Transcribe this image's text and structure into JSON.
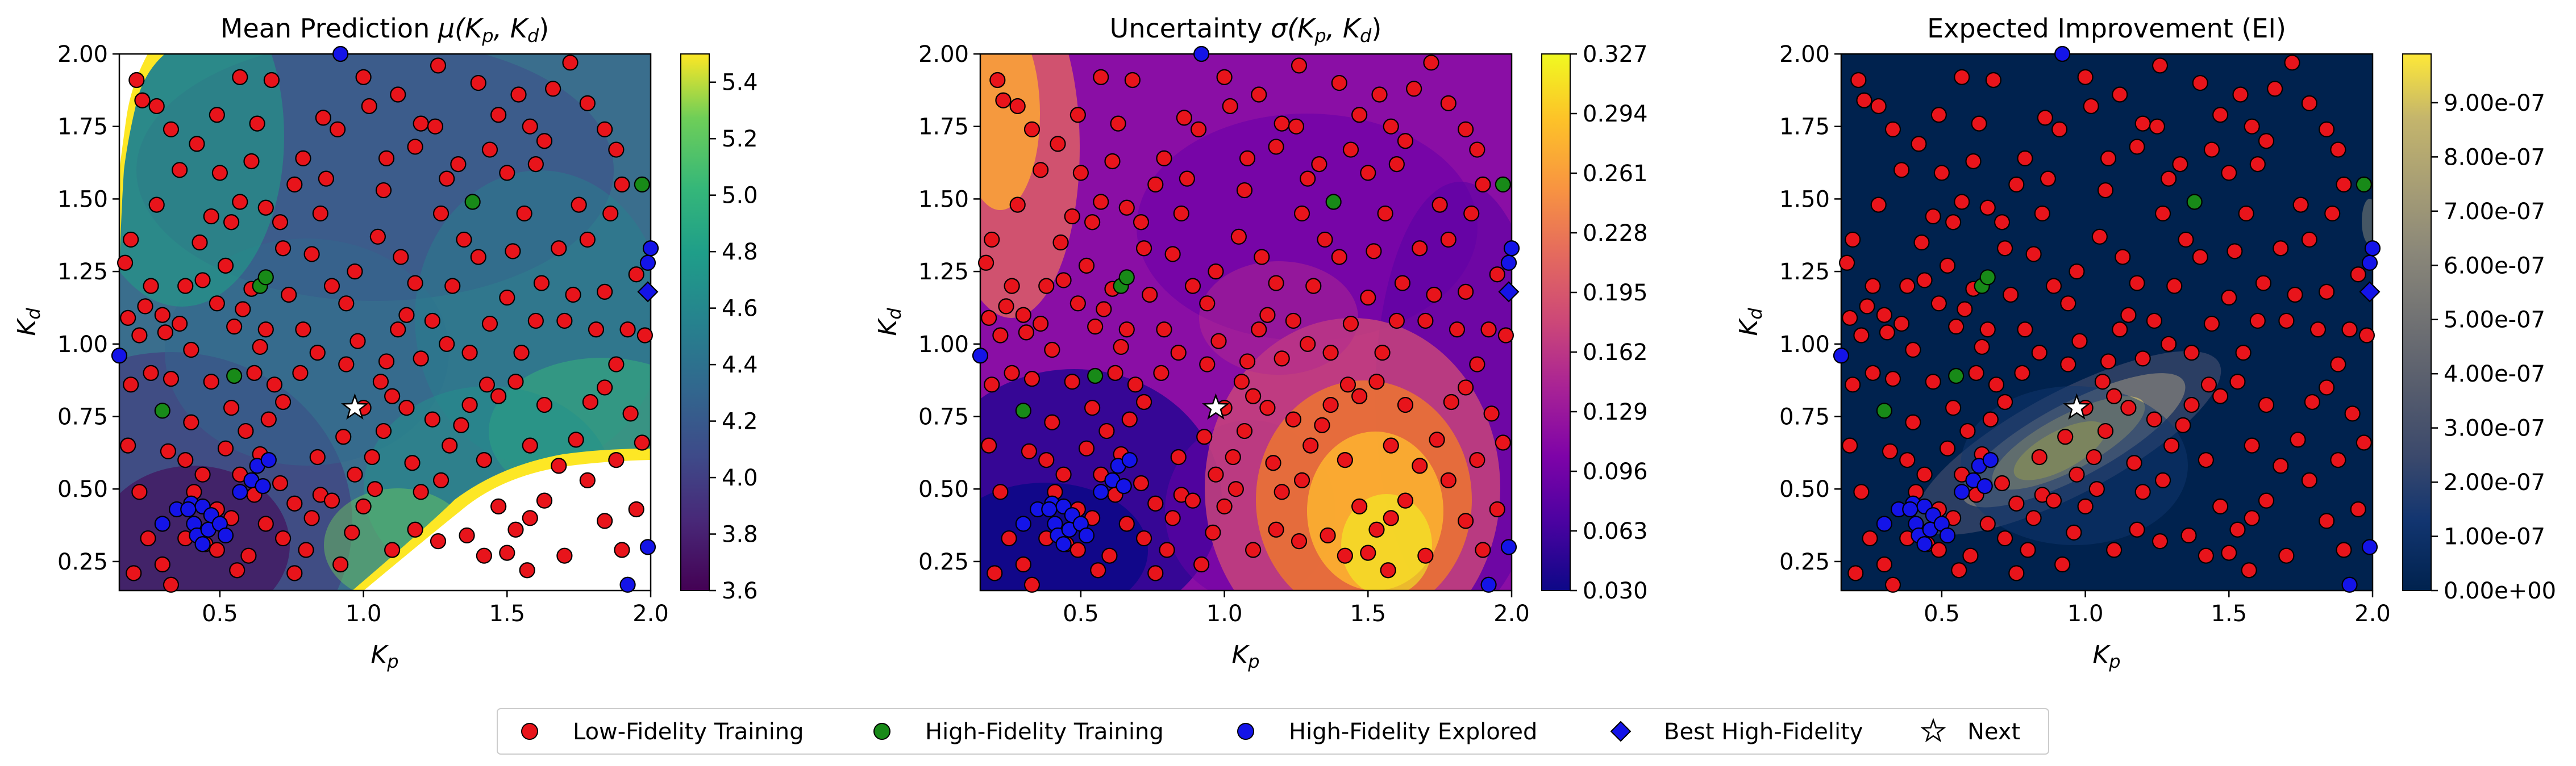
{
  "chart_data": [
    {
      "type": "heatmap",
      "title": "Mean Prediction μ(K_p, K_d)",
      "title_main": "Mean Prediction ",
      "title_math": "μ(K",
      "xlabel": "K_p",
      "ylabel": "K_d",
      "xlim": [
        0.15,
        2.0
      ],
      "ylim": [
        0.15,
        2.0
      ],
      "xticks": [
        "0.5",
        "1.0",
        "1.5",
        "2.0"
      ],
      "yticks": [
        "0.25",
        "0.50",
        "0.75",
        "1.00",
        "1.25",
        "1.50",
        "1.75",
        "2.00"
      ],
      "colormap": "viridis",
      "colorbar_range": [
        3.6,
        5.5
      ],
      "colorbar_ticks": [
        "3.6",
        "3.8",
        "4.0",
        "4.2",
        "4.4",
        "4.6",
        "4.8",
        "5.0",
        "5.2",
        "5.4"
      ],
      "masked_above": 5.5
    },
    {
      "type": "heatmap",
      "title": "Uncertainty σ(K_p, K_d)",
      "title_main": "Uncertainty ",
      "title_math": "σ(K",
      "xlabel": "K_p",
      "ylabel": "K_d",
      "xlim": [
        0.15,
        2.0
      ],
      "ylim": [
        0.15,
        2.0
      ],
      "xticks": [
        "0.5",
        "1.0",
        "1.5",
        "2.0"
      ],
      "yticks": [
        "0.25",
        "0.50",
        "0.75",
        "1.00",
        "1.25",
        "1.50",
        "1.75",
        "2.00"
      ],
      "colormap": "plasma",
      "colorbar_range": [
        0.03,
        0.327
      ],
      "colorbar_ticks": [
        "0.030",
        "0.063",
        "0.096",
        "0.129",
        "0.162",
        "0.195",
        "0.228",
        "0.261",
        "0.294",
        "0.327"
      ]
    },
    {
      "type": "heatmap",
      "title": "Expected Improvement (EI)",
      "title_main": "Expected Improvement (EI)",
      "title_math": "",
      "xlabel": "K_p",
      "ylabel": "K_d",
      "xlim": [
        0.15,
        2.0
      ],
      "ylim": [
        0.15,
        2.0
      ],
      "xticks": [
        "0.5",
        "1.0",
        "1.5",
        "2.0"
      ],
      "yticks": [
        "0.25",
        "0.50",
        "0.75",
        "1.00",
        "1.25",
        "1.50",
        "1.75",
        "2.00"
      ],
      "colormap": "cividis",
      "colorbar_range": [
        0,
        9.9e-07
      ],
      "colorbar_ticks": [
        "0.00e+00",
        "1.00e-07",
        "2.00e-07",
        "3.00e-07",
        "4.00e-07",
        "5.00e-07",
        "6.00e-07",
        "7.00e-07",
        "8.00e-07",
        "9.00e-07"
      ]
    }
  ],
  "points": {
    "low_fidelity": [
      [
        0.21,
        1.91
      ],
      [
        0.23,
        1.84
      ],
      [
        0.28,
        1.82
      ],
      [
        0.19,
        1.36
      ],
      [
        0.17,
        1.28
      ],
      [
        0.18,
        1.09
      ],
      [
        0.24,
        1.13
      ],
      [
        0.26,
        1.2
      ],
      [
        0.3,
        1.1
      ],
      [
        0.31,
        1.04
      ],
      [
        0.22,
        1.03
      ],
      [
        0.19,
        0.86
      ],
      [
        0.26,
        0.9
      ],
      [
        0.33,
        0.88
      ],
      [
        0.36,
        1.07
      ],
      [
        0.4,
        0.98
      ],
      [
        0.38,
        1.2
      ],
      [
        0.44,
        1.22
      ],
      [
        0.43,
        1.35
      ],
      [
        0.36,
        1.6
      ],
      [
        0.42,
        1.69
      ],
      [
        0.5,
        1.59
      ],
      [
        0.47,
        1.44
      ],
      [
        0.54,
        1.42
      ],
      [
        0.57,
        1.49
      ],
      [
        0.52,
        1.27
      ],
      [
        0.49,
        1.14
      ],
      [
        0.55,
        1.06
      ],
      [
        0.58,
        1.12
      ],
      [
        0.61,
        1.19
      ],
      [
        0.64,
        0.99
      ],
      [
        0.62,
        0.9
      ],
      [
        0.69,
        0.86
      ],
      [
        0.66,
        1.05
      ],
      [
        0.74,
        1.17
      ],
      [
        0.72,
        1.33
      ],
      [
        0.66,
        1.47
      ],
      [
        0.61,
        1.63
      ],
      [
        0.63,
        1.76
      ],
      [
        0.68,
        1.91
      ],
      [
        0.79,
        1.64
      ],
      [
        0.76,
        1.55
      ],
      [
        0.86,
        1.78
      ],
      [
        0.91,
        1.74
      ],
      [
        0.87,
        1.57
      ],
      [
        0.85,
        1.45
      ],
      [
        0.82,
        1.31
      ],
      [
        0.89,
        1.2
      ],
      [
        0.94,
        1.14
      ],
      [
        0.98,
        1.01
      ],
      [
        0.94,
        0.93
      ],
      [
        0.84,
        0.97
      ],
      [
        0.78,
        0.9
      ],
      [
        0.72,
        0.8
      ],
      [
        0.67,
        0.74
      ],
      [
        0.59,
        0.7
      ],
      [
        0.64,
        0.62
      ],
      [
        0.57,
        0.55
      ],
      [
        0.52,
        0.64
      ],
      [
        0.44,
        0.55
      ],
      [
        0.41,
        0.49
      ],
      [
        0.38,
        0.6
      ],
      [
        0.32,
        0.63
      ],
      [
        0.22,
        0.49
      ],
      [
        0.18,
        0.65
      ],
      [
        0.25,
        0.33
      ],
      [
        0.3,
        0.24
      ],
      [
        0.38,
        0.33
      ],
      [
        0.45,
        0.31
      ],
      [
        0.49,
        0.29
      ],
      [
        0.49,
        0.43
      ],
      [
        0.54,
        0.4
      ],
      [
        0.62,
        0.48
      ],
      [
        0.71,
        0.52
      ],
      [
        0.66,
        0.38
      ],
      [
        0.72,
        0.33
      ],
      [
        0.8,
        0.29
      ],
      [
        0.85,
        0.48
      ],
      [
        0.84,
        0.61
      ],
      [
        0.93,
        0.68
      ],
      [
        0.97,
        0.55
      ],
      [
        1.0,
        0.44
      ],
      [
        1.04,
        0.5
      ],
      [
        1.03,
        0.61
      ],
      [
        1.07,
        0.7
      ],
      [
        1.0,
        0.78
      ],
      [
        1.06,
        0.87
      ],
      [
        1.08,
        0.94
      ],
      [
        1.12,
        1.05
      ],
      [
        1.15,
        1.1
      ],
      [
        1.18,
        1.21
      ],
      [
        1.13,
        1.3
      ],
      [
        1.05,
        1.37
      ],
      [
        1.07,
        1.53
      ],
      [
        1.08,
        1.64
      ],
      [
        1.02,
        1.82
      ],
      [
        1.0,
        1.92
      ],
      [
        1.12,
        1.86
      ],
      [
        1.2,
        1.76
      ],
      [
        1.18,
        1.68
      ],
      [
        1.25,
        1.75
      ],
      [
        1.29,
        1.57
      ],
      [
        1.33,
        1.62
      ],
      [
        1.27,
        1.45
      ],
      [
        1.35,
        1.36
      ],
      [
        1.4,
        1.3
      ],
      [
        1.31,
        1.2
      ],
      [
        1.24,
        1.08
      ],
      [
        1.29,
        1.0
      ],
      [
        1.37,
        0.97
      ],
      [
        1.44,
        1.07
      ],
      [
        1.5,
        1.16
      ],
      [
        1.52,
        1.32
      ],
      [
        1.56,
        1.45
      ],
      [
        1.5,
        1.59
      ],
      [
        1.44,
        1.67
      ],
      [
        1.47,
        1.79
      ],
      [
        1.54,
        1.86
      ],
      [
        1.58,
        1.75
      ],
      [
        1.63,
        1.7
      ],
      [
        1.66,
        1.88
      ],
      [
        1.72,
        1.97
      ],
      [
        1.78,
        1.83
      ],
      [
        1.84,
        1.74
      ],
      [
        1.88,
        1.67
      ],
      [
        1.9,
        1.55
      ],
      [
        1.86,
        1.45
      ],
      [
        1.78,
        1.36
      ],
      [
        1.75,
        1.48
      ],
      [
        1.68,
        1.33
      ],
      [
        1.62,
        1.21
      ],
      [
        1.6,
        1.08
      ],
      [
        1.55,
        0.97
      ],
      [
        1.53,
        0.87
      ],
      [
        1.47,
        0.82
      ],
      [
        1.43,
        0.86
      ],
      [
        1.37,
        0.79
      ],
      [
        1.34,
        0.72
      ],
      [
        1.3,
        0.65
      ],
      [
        1.27,
        0.53
      ],
      [
        1.2,
        0.49
      ],
      [
        1.17,
        0.59
      ],
      [
        1.18,
        0.36
      ],
      [
        1.26,
        0.32
      ],
      [
        1.36,
        0.34
      ],
      [
        1.42,
        0.27
      ],
      [
        1.47,
        0.44
      ],
      [
        1.53,
        0.36
      ],
      [
        1.58,
        0.4
      ],
      [
        1.63,
        0.46
      ],
      [
        1.68,
        0.58
      ],
      [
        1.74,
        0.67
      ],
      [
        1.79,
        0.8
      ],
      [
        1.84,
        0.85
      ],
      [
        1.88,
        0.93
      ],
      [
        1.81,
        1.05
      ],
      [
        1.73,
        1.17
      ],
      [
        1.92,
        1.05
      ],
      [
        1.95,
        1.24
      ],
      [
        1.98,
        1.03
      ],
      [
        1.93,
        0.76
      ],
      [
        1.97,
        0.66
      ],
      [
        1.88,
        0.6
      ],
      [
        1.78,
        0.53
      ],
      [
        1.84,
        0.39
      ],
      [
        1.9,
        0.29
      ],
      [
        1.95,
        0.43
      ],
      [
        1.7,
        0.27
      ],
      [
        1.57,
        0.22
      ],
      [
        1.5,
        0.28
      ],
      [
        1.24,
        0.74
      ],
      [
        1.15,
        0.78
      ],
      [
        1.1,
        0.82
      ],
      [
        0.89,
        0.46
      ],
      [
        0.82,
        0.4
      ],
      [
        0.76,
        0.45
      ],
      [
        0.6,
        0.27
      ],
      [
        0.56,
        0.22
      ],
      [
        0.33,
        0.17
      ],
      [
        0.2,
        0.21
      ],
      [
        0.97,
        1.25
      ],
      [
        0.79,
        1.05
      ],
      [
        0.71,
        1.42
      ],
      [
        0.57,
        1.92
      ],
      [
        0.49,
        1.79
      ],
      [
        0.33,
        1.74
      ],
      [
        0.28,
        1.48
      ],
      [
        0.54,
        0.78
      ],
      [
        0.47,
        0.87
      ],
      [
        0.4,
        0.73
      ],
      [
        1.4,
        1.9
      ],
      [
        1.6,
        1.62
      ],
      [
        1.26,
        1.96
      ],
      [
        1.1,
        0.29
      ],
      [
        0.96,
        0.35
      ],
      [
        0.92,
        0.24
      ],
      [
        0.76,
        0.21
      ],
      [
        1.7,
        1.08
      ],
      [
        1.84,
        1.18
      ],
      [
        1.63,
        0.79
      ],
      [
        1.42,
        0.6
      ],
      [
        1.58,
        0.65
      ],
      [
        1.2,
        0.95
      ]
    ],
    "high_fidelity": [
      [
        0.3,
        0.77
      ],
      [
        0.55,
        0.89
      ],
      [
        0.64,
        1.2
      ],
      [
        0.66,
        1.23
      ],
      [
        1.38,
        1.49
      ],
      [
        1.97,
        1.55
      ]
    ],
    "hf_explored": [
      [
        0.15,
        0.96
      ],
      [
        0.3,
        0.38
      ],
      [
        0.35,
        0.43
      ],
      [
        0.4,
        0.45
      ],
      [
        0.41,
        0.38
      ],
      [
        0.42,
        0.34
      ],
      [
        0.44,
        0.44
      ],
      [
        0.46,
        0.36
      ],
      [
        0.47,
        0.41
      ],
      [
        0.44,
        0.31
      ],
      [
        0.5,
        0.38
      ],
      [
        0.52,
        0.34
      ],
      [
        0.61,
        0.53
      ],
      [
        0.63,
        0.58
      ],
      [
        0.67,
        0.6
      ],
      [
        0.65,
        0.51
      ],
      [
        0.57,
        0.49
      ],
      [
        0.39,
        0.43
      ],
      [
        2.0,
        1.33
      ],
      [
        1.99,
        1.28
      ],
      [
        1.92,
        0.17
      ],
      [
        0.92,
        2.0
      ],
      [
        1.99,
        0.3
      ]
    ],
    "best_hf": [
      [
        1.99,
        1.18
      ]
    ],
    "next": [
      [
        0.97,
        0.78
      ]
    ]
  },
  "legend": {
    "low_fidelity": "Low-Fidelity Training",
    "high_fidelity": "High-Fidelity Training",
    "hf_explored": "High-Fidelity Explored",
    "best_hf": "Best High-Fidelity",
    "next": "Next"
  },
  "colors": {
    "low_fidelity": "#e8141b",
    "high_fidelity": "#188a18",
    "hf_explored": "#1414e8",
    "best_hf": "#1414e8",
    "next": "#ffffff"
  }
}
